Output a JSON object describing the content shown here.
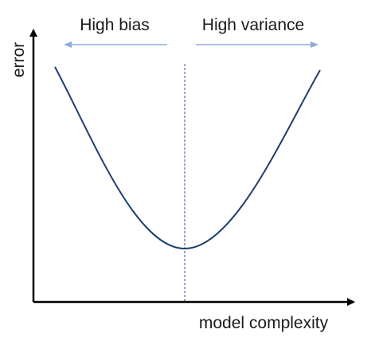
{
  "diagram": {
    "left_region_label": "High bias",
    "right_region_label": "High variance",
    "x_axis_label": "model complexity",
    "y_axis_label": "error"
  },
  "colors": {
    "axis": "#000000",
    "curve": "#1f3f6b",
    "arrows": "#8faadc",
    "divider": "#2f5597"
  }
}
